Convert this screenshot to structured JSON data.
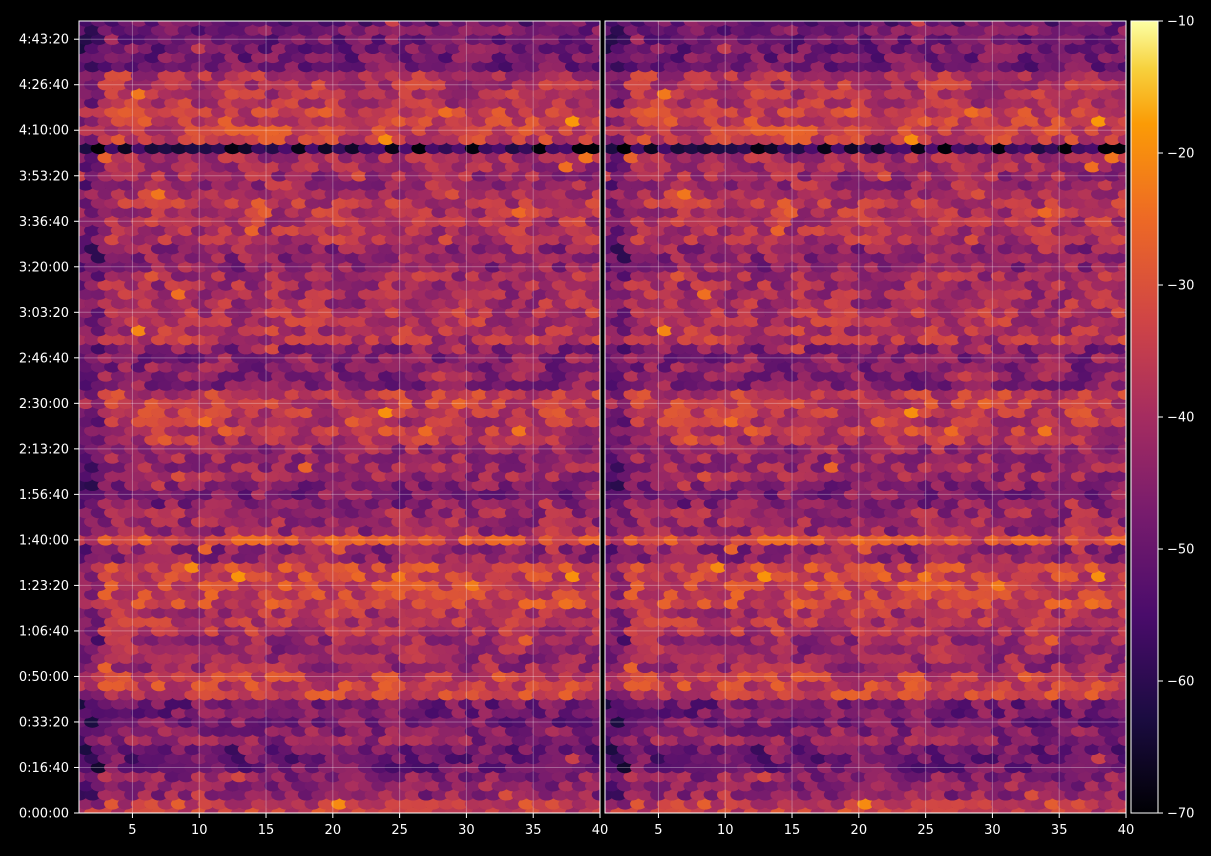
{
  "chart_data": {
    "type": "heatmap",
    "description_of_cells": "hexbin-style rows of cells; colour encodes value",
    "panels": [
      {
        "x": {
          "ticks": [
            5,
            10,
            15,
            20,
            25,
            30,
            35,
            40
          ],
          "tick_labels": [
            "5",
            "10",
            "15",
            "20",
            "25",
            "30",
            "35",
            "40"
          ],
          "range": [
            1,
            40
          ]
        },
        "y": {
          "range_seconds": [
            0,
            17400
          ],
          "ticks": [
            0,
            1000,
            2000,
            3000,
            4000,
            5000,
            6000,
            7000,
            8000,
            9000,
            10000,
            11000,
            12000,
            13000,
            14000,
            15000,
            16000,
            17000
          ],
          "tick_labels": [
            "0:00:00",
            "0:16:40",
            "0:33:20",
            "0:50:00",
            "1:06:40",
            "1:23:20",
            "1:40:00",
            "1:56:40",
            "2:13:20",
            "2:30:00",
            "2:46:40",
            "3:03:20",
            "3:20:00",
            "3:36:40",
            "3:53:20",
            "4:10:00",
            "4:26:40",
            "4:43:20"
          ]
        }
      },
      {
        "x": {
          "ticks": [
            5,
            10,
            15,
            20,
            25,
            30,
            35,
            40
          ],
          "tick_labels": [
            "5",
            "10",
            "15",
            "20",
            "25",
            "30",
            "35",
            "40"
          ],
          "range": [
            1,
            40
          ]
        },
        "y": {
          "range_seconds": [
            0,
            17400
          ],
          "tick_labels_shown": false
        }
      }
    ],
    "row_profile": {
      "note": "approximate mean value (dB) per time band read from colour, time in seconds",
      "bands": [
        {
          "t": [
            0,
            400
          ],
          "v": -35
        },
        {
          "t": [
            400,
            1000
          ],
          "v": -44
        },
        {
          "t": [
            1000,
            1500
          ],
          "v": -50
        },
        {
          "t": [
            1500,
            2000
          ],
          "v": -44
        },
        {
          "t": [
            2000,
            2600
          ],
          "v": -48
        },
        {
          "t": [
            2600,
            3200
          ],
          "v": -34
        },
        {
          "t": [
            3200,
            3900
          ],
          "v": -42
        },
        {
          "t": [
            3900,
            4500
          ],
          "v": -38
        },
        {
          "t": [
            4500,
            5500
          ],
          "v": -33
        },
        {
          "t": [
            5500,
            5900
          ],
          "v": -44
        },
        {
          "t": [
            5900,
            6100
          ],
          "v": -32
        },
        {
          "t": [
            6100,
            6700
          ],
          "v": -42
        },
        {
          "t": [
            6700,
            7400
          ],
          "v": -46
        },
        {
          "t": [
            7400,
            8100
          ],
          "v": -42
        },
        {
          "t": [
            8100,
            8700
          ],
          "v": -38
        },
        {
          "t": [
            8700,
            9300
          ],
          "v": -36
        },
        {
          "t": [
            9300,
            10300
          ],
          "v": -45
        },
        {
          "t": [
            10300,
            11100
          ],
          "v": -38
        },
        {
          "t": [
            11100,
            12000
          ],
          "v": -40
        },
        {
          "t": [
            12000,
            12600
          ],
          "v": -44
        },
        {
          "t": [
            12600,
            13800
          ],
          "v": -38
        },
        {
          "t": [
            13800,
            14600
          ],
          "v": -41
        },
        {
          "t": [
            14600,
            14700
          ],
          "v": -62
        },
        {
          "t": [
            14700,
            15500
          ],
          "v": -34
        },
        {
          "t": [
            15500,
            16400
          ],
          "v": -38
        },
        {
          "t": [
            16400,
            17400
          ],
          "v": -48
        }
      ]
    },
    "colorbar": {
      "ticks": [
        -10,
        -20,
        -30,
        -40,
        -50,
        -60,
        -70
      ],
      "tick_labels": [
        "−10",
        "−20",
        "−30",
        "−40",
        "−50",
        "−60",
        "−70"
      ],
      "range": [
        -70,
        -10
      ],
      "colormap": "inferno"
    },
    "grid": true,
    "background": "#000000"
  }
}
